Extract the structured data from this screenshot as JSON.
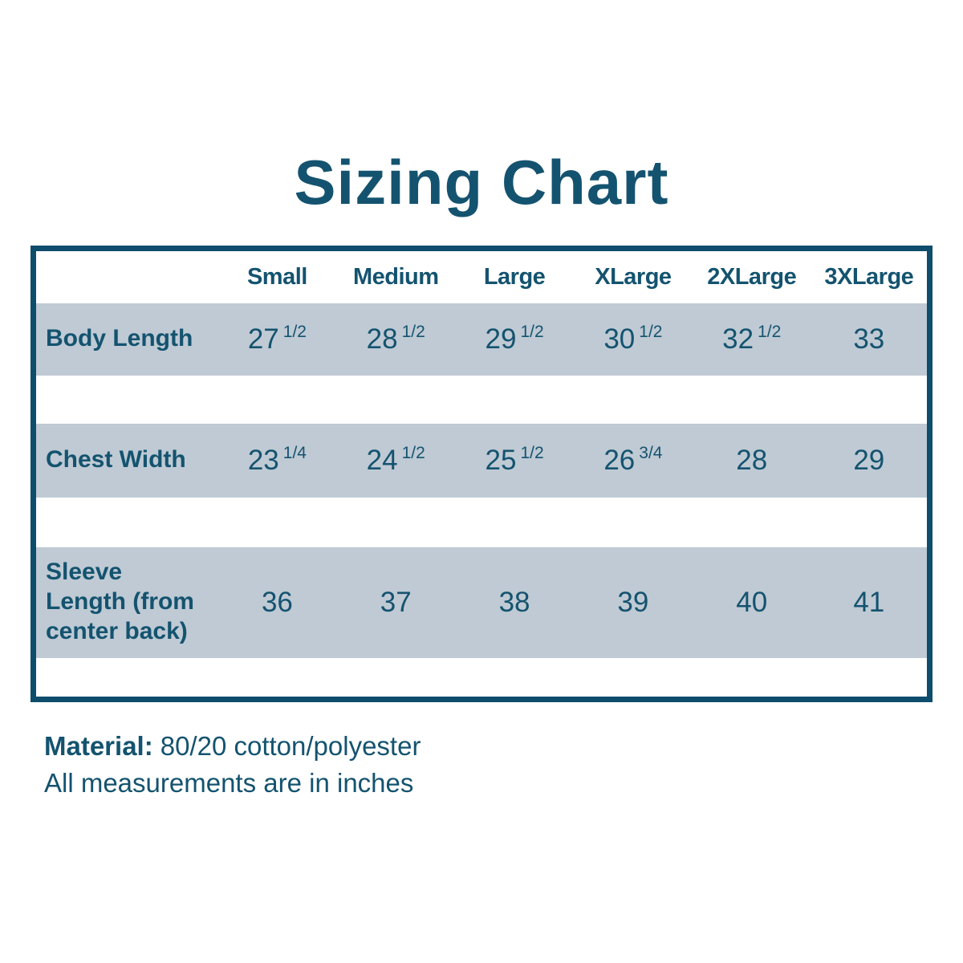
{
  "page": {
    "title": "Sizing Chart",
    "footer": {
      "material_label": "Material:",
      "material_value": "80/20 cotton/polyester",
      "units_note": "All measurements are in inches"
    }
  },
  "colors": {
    "text_teal": "#14536F",
    "border_teal": "#0E4D6C",
    "row_background": "#BFCAD4",
    "page_background": "#FFFFFF"
  },
  "chart_data": {
    "type": "table",
    "title": "Sizing Chart",
    "columns": [
      "Small",
      "Medium",
      "Large",
      "XLarge",
      "2XLarge",
      "3XLarge"
    ],
    "rows": [
      {
        "label": "Body Length",
        "values": [
          {
            "whole": "27",
            "frac": "1/2"
          },
          {
            "whole": "28",
            "frac": "1/2"
          },
          {
            "whole": "29",
            "frac": "1/2"
          },
          {
            "whole": "30",
            "frac": "1/2"
          },
          {
            "whole": "32",
            "frac": "1/2"
          },
          {
            "whole": "33",
            "frac": ""
          }
        ]
      },
      {
        "label": "Chest Width",
        "values": [
          {
            "whole": "23",
            "frac": "1/4"
          },
          {
            "whole": "24",
            "frac": "1/2"
          },
          {
            "whole": "25",
            "frac": "1/2"
          },
          {
            "whole": "26",
            "frac": "3/4"
          },
          {
            "whole": "28",
            "frac": ""
          },
          {
            "whole": "29",
            "frac": ""
          }
        ]
      },
      {
        "label": "Sleeve Length (from center back)",
        "values": [
          {
            "whole": "36",
            "frac": ""
          },
          {
            "whole": "37",
            "frac": ""
          },
          {
            "whole": "38",
            "frac": ""
          },
          {
            "whole": "39",
            "frac": ""
          },
          {
            "whole": "40",
            "frac": ""
          },
          {
            "whole": "41",
            "frac": ""
          }
        ]
      }
    ],
    "units": "inches",
    "notes": [
      "Material: 80/20 cotton/polyester",
      "All measurements are in inches"
    ]
  }
}
